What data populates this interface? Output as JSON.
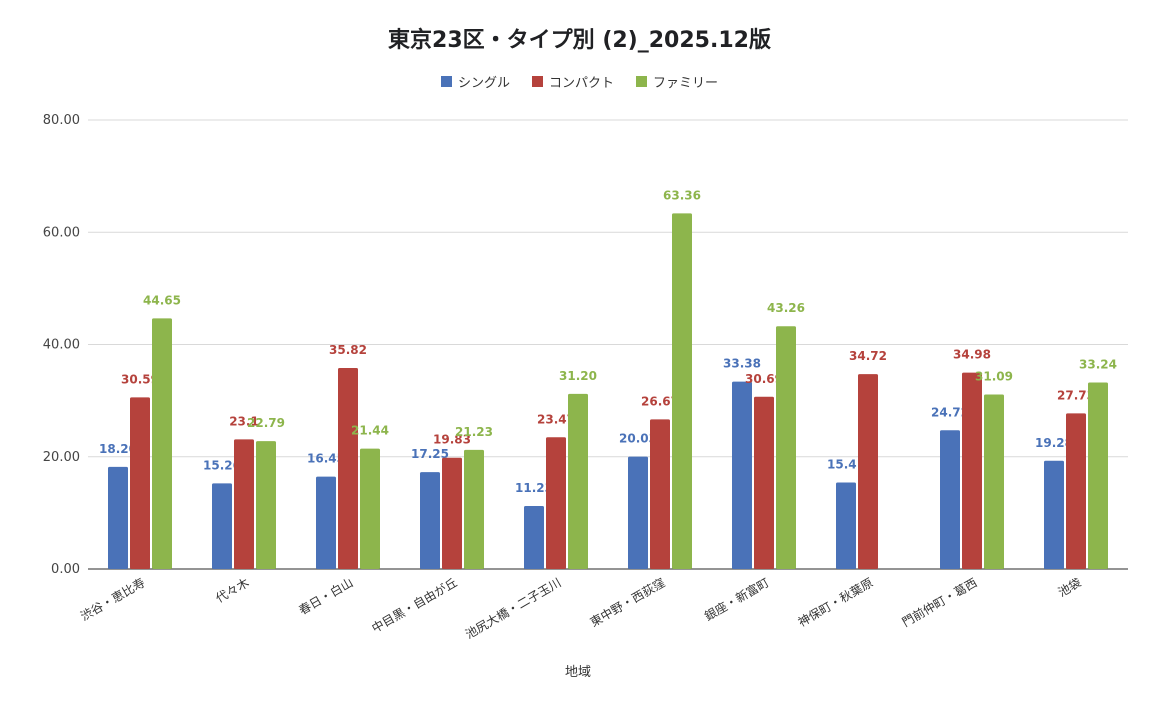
{
  "chart_data": {
    "type": "bar",
    "title": "東京23区・タイプ別 (2)_2025.12版",
    "xlabel": "地域",
    "ylabel": "",
    "ylim": [
      0,
      80
    ],
    "yticks": [
      "0.00",
      "20.00",
      "40.00",
      "60.00",
      "80.00"
    ],
    "ytick_values": [
      0,
      20,
      40,
      60,
      80
    ],
    "grid": true,
    "legend_position": "top",
    "categories": [
      "渋谷・恵比寿",
      "代々木",
      "春日・白山",
      "中目黒・自由が丘",
      "池尻大橋・二子玉川",
      "東中野・西荻窪",
      "銀座・新富町",
      "神保町・秋葉原",
      "門前仲町・葛西",
      "池袋"
    ],
    "series": [
      {
        "name": "シングル",
        "color": "#4a72b8",
        "values": [
          18.2,
          15.26,
          16.45,
          17.25,
          11.23,
          20.03,
          33.38,
          15.41,
          24.72,
          19.28
        ],
        "labels": [
          "18.20",
          "15.26",
          "16.45",
          "17.25",
          "11.23",
          "20.03",
          "33.38",
          "15.41",
          "24.72",
          "19.28"
        ]
      },
      {
        "name": "コンパクト",
        "color": "#b5423c",
        "values": [
          30.59,
          23.1,
          35.82,
          19.83,
          23.47,
          26.67,
          30.69,
          34.72,
          34.98,
          27.73
        ],
        "labels": [
          "30.59",
          "23.1",
          "35.82",
          "19.83",
          "23.47",
          "26.67",
          "30.69",
          "34.72",
          "34.98",
          "27.73"
        ]
      },
      {
        "name": "ファミリー",
        "color": "#8db54c",
        "values": [
          44.65,
          22.79,
          21.44,
          21.23,
          31.2,
          63.36,
          43.26,
          null,
          31.09,
          33.24
        ],
        "labels": [
          "44.65",
          "22.79",
          "21.44",
          "21.23",
          "31.20",
          "63.36",
          "43.26",
          "",
          "31.09",
          "33.24"
        ]
      }
    ]
  }
}
